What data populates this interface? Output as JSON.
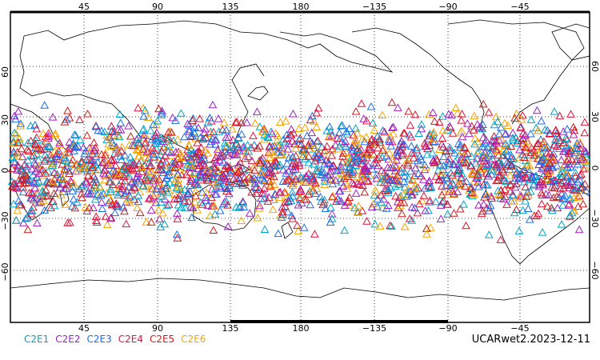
{
  "map": {
    "lon_top_labels": [
      "45",
      "90",
      "135",
      "180",
      "−135",
      "−90",
      "−45"
    ],
    "lon_bottom_labels": [
      "45",
      "90",
      "135",
      "180",
      "−135",
      "−90",
      "−45"
    ],
    "lat_labels": [
      "60",
      "30",
      "0",
      "−30",
      "−60"
    ],
    "grid_lines": "dotted"
  },
  "legend": [
    {
      "label": "C2E1",
      "color": "#00a5c8"
    },
    {
      "label": "C2E2",
      "color": "#a020c0"
    },
    {
      "label": "C2E3",
      "color": "#1e6ee6"
    },
    {
      "label": "C2E4",
      "color": "#e0143c"
    },
    {
      "label": "C2E5",
      "color": "#c81e1e"
    },
    {
      "label": "C2E6",
      "color": "#f5a500"
    }
  ],
  "source_label": "UCARwet2.2023-12-11",
  "marker": "triangle-outline",
  "observation_band_lat": [
    -45,
    45
  ]
}
